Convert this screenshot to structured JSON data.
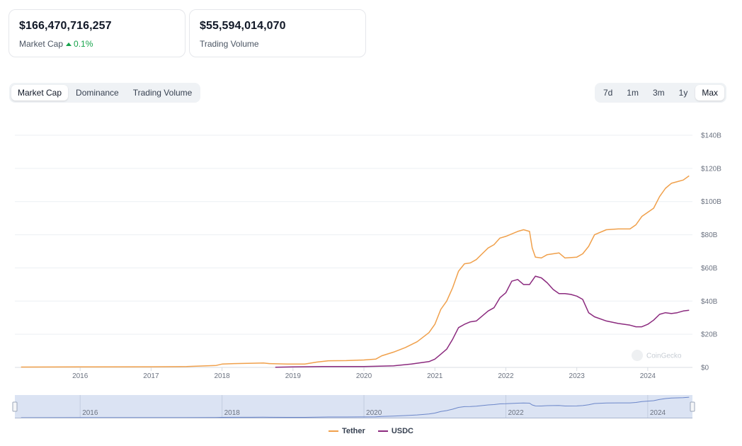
{
  "stats": {
    "market_cap": {
      "value": "$166,470,716,257",
      "label": "Market Cap",
      "change": "0.1%"
    },
    "trading_volume": {
      "value": "$55,594,014,070",
      "label": "Trading Volume"
    }
  },
  "view_tabs": [
    "Market Cap",
    "Dominance",
    "Trading Volume"
  ],
  "active_view": "Market Cap",
  "range_tabs": [
    "7d",
    "1m",
    "3m",
    "1y",
    "Max"
  ],
  "active_range": "Max",
  "watermark": "CoinGecko",
  "colors": {
    "tether": "#f0a04b",
    "usdc": "#8b2a7e",
    "navigator_line": "#6b86c9",
    "navigator_fill": "#dbe3f3"
  },
  "chart_data": {
    "type": "line",
    "x_axis": {
      "ticks": [
        "2016",
        "2017",
        "2018",
        "2019",
        "2020",
        "2021",
        "2022",
        "2023",
        "2024"
      ]
    },
    "y_axis": {
      "ticks": [
        "$0",
        "$20B",
        "$40B",
        "$60B",
        "$80B",
        "$100B",
        "$120B",
        "$140B"
      ],
      "range": [
        0,
        140
      ],
      "unit": "B USD",
      "position": "right"
    },
    "navigator_ticks": [
      "2016",
      "2018",
      "2020",
      "2022",
      "2024"
    ],
    "legend": {
      "position": "bottom-center"
    },
    "grid": true,
    "series": [
      {
        "name": "Tether",
        "key": "tether",
        "points": [
          [
            "2015-03",
            0.2
          ],
          [
            "2016-01",
            0.3
          ],
          [
            "2017-01",
            0.4
          ],
          [
            "2017-07",
            0.5
          ],
          [
            "2017-12",
            1.2
          ],
          [
            "2018-01",
            2.0
          ],
          [
            "2018-03",
            2.3
          ],
          [
            "2018-06",
            2.5
          ],
          [
            "2018-08",
            2.7
          ],
          [
            "2018-09",
            2.3
          ],
          [
            "2018-12",
            2.0
          ],
          [
            "2019-03",
            2.0
          ],
          [
            "2019-05",
            3.2
          ],
          [
            "2019-07",
            4.0
          ],
          [
            "2019-10",
            4.1
          ],
          [
            "2020-01",
            4.5
          ],
          [
            "2020-03",
            5.0
          ],
          [
            "2020-04",
            7.0
          ],
          [
            "2020-06",
            9.2
          ],
          [
            "2020-08",
            12.0
          ],
          [
            "2020-10",
            15.5
          ],
          [
            "2020-12",
            21.0
          ],
          [
            "2021-01",
            26.0
          ],
          [
            "2021-02",
            35.0
          ],
          [
            "2021-03",
            40.0
          ],
          [
            "2021-04",
            48.0
          ],
          [
            "2021-05",
            58.0
          ],
          [
            "2021-06",
            62.5
          ],
          [
            "2021-07",
            63.0
          ],
          [
            "2021-08",
            65.0
          ],
          [
            "2021-09",
            68.5
          ],
          [
            "2021-10",
            72.0
          ],
          [
            "2021-11",
            74.0
          ],
          [
            "2021-12",
            78.0
          ],
          [
            "2022-01",
            79.0
          ],
          [
            "2022-03",
            82.0
          ],
          [
            "2022-04",
            83.0
          ],
          [
            "2022-05",
            82.0
          ],
          [
            "2022-05-15",
            72.0
          ],
          [
            "2022-06",
            66.5
          ],
          [
            "2022-07",
            66.0
          ],
          [
            "2022-08",
            68.0
          ],
          [
            "2022-10",
            69.0
          ],
          [
            "2022-11",
            66.0
          ],
          [
            "2023-01",
            66.5
          ],
          [
            "2023-02",
            68.5
          ],
          [
            "2023-03",
            73.0
          ],
          [
            "2023-04",
            80.0
          ],
          [
            "2023-06",
            83.0
          ],
          [
            "2023-08",
            83.5
          ],
          [
            "2023-10",
            83.5
          ],
          [
            "2023-11",
            86.0
          ],
          [
            "2023-12",
            91.0
          ],
          [
            "2024-02",
            96.0
          ],
          [
            "2024-03",
            103.0
          ],
          [
            "2024-04",
            108.0
          ],
          [
            "2024-05",
            111.0
          ],
          [
            "2024-06",
            112.0
          ],
          [
            "2024-07",
            113.0
          ],
          [
            "2024-08",
            115.5
          ]
        ]
      },
      {
        "name": "USDC",
        "key": "usdc",
        "points": [
          [
            "2018-10",
            0.1
          ],
          [
            "2019-01",
            0.3
          ],
          [
            "2019-06",
            0.5
          ],
          [
            "2020-01",
            0.5
          ],
          [
            "2020-03",
            0.7
          ],
          [
            "2020-06",
            1.0
          ],
          [
            "2020-09",
            2.0
          ],
          [
            "2020-12",
            3.5
          ],
          [
            "2021-01",
            5.0
          ],
          [
            "2021-02",
            8.0
          ],
          [
            "2021-03",
            11.0
          ],
          [
            "2021-04",
            17.0
          ],
          [
            "2021-05",
            24.0
          ],
          [
            "2021-06",
            26.0
          ],
          [
            "2021-07",
            27.5
          ],
          [
            "2021-08",
            28.0
          ],
          [
            "2021-09",
            31.0
          ],
          [
            "2021-10",
            34.0
          ],
          [
            "2021-11",
            36.0
          ],
          [
            "2021-12",
            42.0
          ],
          [
            "2022-01",
            45.0
          ],
          [
            "2022-02",
            52.0
          ],
          [
            "2022-03",
            53.0
          ],
          [
            "2022-04",
            50.0
          ],
          [
            "2022-05",
            50.0
          ],
          [
            "2022-06",
            55.0
          ],
          [
            "2022-07",
            54.0
          ],
          [
            "2022-08",
            51.0
          ],
          [
            "2022-09",
            47.0
          ],
          [
            "2022-10",
            44.5
          ],
          [
            "2022-11",
            44.5
          ],
          [
            "2022-12",
            44.0
          ],
          [
            "2023-01",
            43.0
          ],
          [
            "2023-02",
            41.0
          ],
          [
            "2023-03",
            33.0
          ],
          [
            "2023-04",
            30.5
          ],
          [
            "2023-06",
            28.0
          ],
          [
            "2023-08",
            26.5
          ],
          [
            "2023-10",
            25.5
          ],
          [
            "2023-11",
            24.5
          ],
          [
            "2023-12",
            24.5
          ],
          [
            "2024-01",
            26.0
          ],
          [
            "2024-02",
            28.5
          ],
          [
            "2024-03",
            32.0
          ],
          [
            "2024-04",
            33.0
          ],
          [
            "2024-05",
            32.5
          ],
          [
            "2024-06",
            33.0
          ],
          [
            "2024-07",
            34.0
          ],
          [
            "2024-08",
            34.5
          ]
        ]
      }
    ]
  }
}
